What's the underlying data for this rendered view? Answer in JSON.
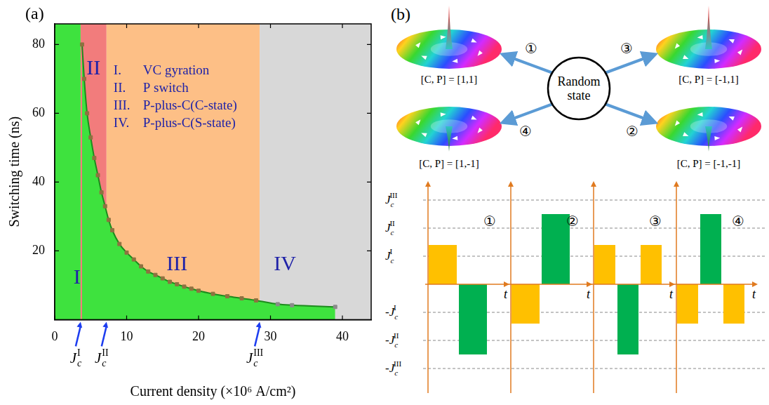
{
  "chart_data": {
    "panel_label": "(a)",
    "type": "scatter",
    "x_label": "Current density (×10⁶ A/cm²)",
    "y_label": "Switching time (ns)",
    "xlim": [
      0,
      44
    ],
    "xticks": [
      0,
      10,
      20,
      30,
      40
    ],
    "ylim": [
      0,
      86
    ],
    "yticks": [
      20,
      40,
      60,
      80
    ],
    "grid": false,
    "series": [
      {
        "color": "#8e7240",
        "marker": "square",
        "x": [
          3.8,
          4.1,
          4.5,
          5,
          5.5,
          6,
          6.5,
          7,
          7.5,
          8,
          9,
          10,
          11,
          12,
          13,
          14,
          15,
          16,
          17,
          18,
          19,
          20,
          22,
          24,
          26,
          28
        ],
        "values": [
          80,
          70,
          60,
          53,
          47,
          42,
          37,
          33,
          29,
          26,
          22,
          19.5,
          17.5,
          15.5,
          14,
          13,
          12,
          11,
          10.3,
          9.6,
          9,
          8.4,
          7.5,
          6.8,
          6.2,
          5.6
        ]
      },
      {
        "color": "#8a8a8a",
        "marker": "square",
        "x": [
          31,
          33,
          39
        ],
        "values": [
          4.5,
          4.2,
          3.7
        ]
      }
    ],
    "regions": [
      {
        "label": "I",
        "numeral": "I.",
        "description": "VC gyration",
        "from": 0,
        "to": 3.6,
        "color": "#3ee23e",
        "label_x": 3.1,
        "label_y": 12
      },
      {
        "label": "II",
        "numeral": "II.",
        "description": "P switch",
        "from": 3.6,
        "to": 7.2,
        "color": "#f27c7c",
        "label_x": 5.4,
        "label_y": 73
      },
      {
        "label": "III",
        "numeral": "III.",
        "description": "P-plus-C(C-state)",
        "from": 7.2,
        "to": 28.5,
        "color": "#fdbf86",
        "label_x": 17,
        "label_y": 16
      },
      {
        "label": "IV",
        "numeral": "IV.",
        "description": "P-plus-C(S-state)",
        "from": 28.5,
        "to": 44,
        "color": "#d8d8d8",
        "label_x": 32,
        "label_y": 16
      }
    ],
    "thresholds": [
      {
        "symbol": "J",
        "sub": "c",
        "sup": "I",
        "x": 3.6
      },
      {
        "symbol": "J",
        "sub": "c",
        "sup": "II",
        "x": 7.2
      },
      {
        "symbol": "J",
        "sub": "c",
        "sup": "III",
        "x": 28.5
      }
    ]
  },
  "diagram": {
    "panel_label": "(b)",
    "center": "Random state",
    "states": [
      {
        "number": "①",
        "label": "[C, P] = [1,1]",
        "C": 1,
        "P": 1
      },
      {
        "number": "②",
        "label": "[C, P] = [-1,-1]",
        "C": -1,
        "P": -1
      },
      {
        "number": "③",
        "label": "[C, P] = [-1,1]",
        "C": -1,
        "P": 1
      },
      {
        "number": "④",
        "label": "[C, P] = [1,-1]",
        "C": 1,
        "P": -1
      }
    ],
    "levels": [
      {
        "symbol": "J",
        "sub": "c",
        "sup": "III",
        "value": 3
      },
      {
        "symbol": "J",
        "sub": "c",
        "sup": "II",
        "value": 2
      },
      {
        "symbol": "J",
        "sub": "c",
        "sup": "I",
        "value": 1
      },
      {
        "prefix": "-",
        "symbol": "J",
        "sub": "c",
        "sup": "I",
        "value": -1
      },
      {
        "prefix": "-",
        "symbol": "J",
        "sub": "c",
        "sup": "II",
        "value": -2
      },
      {
        "prefix": "-",
        "symbol": "J",
        "sub": "c",
        "sup": "III",
        "value": -3
      }
    ],
    "time_label": "t",
    "sequences": [
      {
        "number": "①",
        "pulses": [
          {
            "amplitude": 1.4,
            "color": "#ffc000"
          },
          {
            "amplitude": -2.5,
            "color": "#00b050"
          }
        ]
      },
      {
        "number": "②",
        "pulses": [
          {
            "amplitude": -1.4,
            "color": "#ffc000"
          },
          {
            "amplitude": 2.5,
            "color": "#00b050"
          }
        ]
      },
      {
        "number": "③",
        "pulses": [
          {
            "amplitude": 1.4,
            "color": "#ffc000"
          },
          {
            "amplitude": -2.5,
            "color": "#00b050"
          },
          {
            "amplitude": 1.4,
            "color": "#ffc000"
          }
        ]
      },
      {
        "number": "④",
        "pulses": [
          {
            "amplitude": -1.4,
            "color": "#ffc000"
          },
          {
            "amplitude": 2.5,
            "color": "#00b050"
          },
          {
            "amplitude": -1.4,
            "color": "#ffc000"
          }
        ]
      }
    ]
  }
}
